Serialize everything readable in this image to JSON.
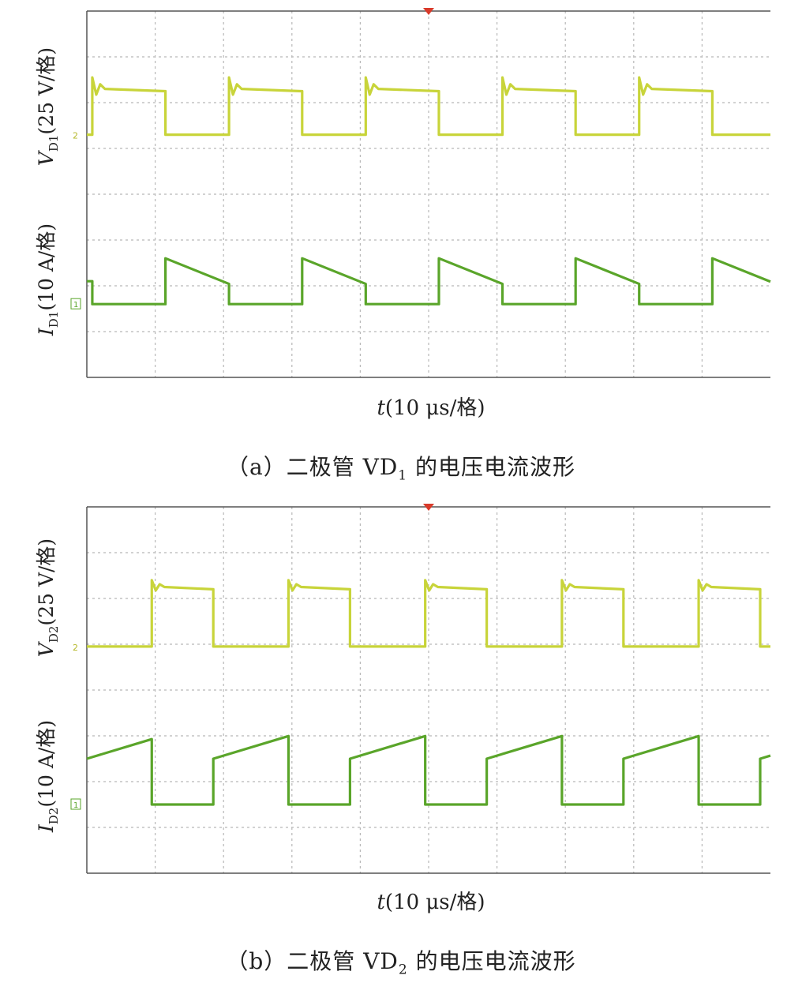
{
  "charts": [
    {
      "id": "a",
      "upper_label": {
        "var": "V",
        "sub": "D1",
        "rest": "(25 V/格)"
      },
      "lower_label": {
        "var": "I",
        "sub": "D1",
        "rest": "(10 A/格)"
      },
      "xlabel": {
        "var": "t",
        "rest": "(10 μs/格)"
      },
      "caption": {
        "prefix": "（a）二极管 VD",
        "sub": "1",
        "suffix": " 的电压电流波形"
      },
      "marker_upper": "2",
      "marker_lower": "1"
    },
    {
      "id": "b",
      "upper_label": {
        "var": "V",
        "sub": "D2",
        "rest": "(25 V/格)"
      },
      "lower_label": {
        "var": "I",
        "sub": "D2",
        "rest": "(10 A/格)"
      },
      "xlabel": {
        "var": "t",
        "rest": "(10 μs/格)"
      },
      "caption": {
        "prefix": "（b）二极管 VD",
        "sub": "2",
        "suffix": " 的电压电流波形"
      },
      "marker_upper": "2",
      "marker_lower": "1"
    }
  ],
  "chart_data": [
    {
      "type": "line",
      "title": "",
      "x_unit_per_div": "10 μs",
      "x_divisions": 10,
      "y_divisions": 8,
      "grid": true,
      "colors": {
        "voltage": "#c8d43a",
        "current": "#5aa52a",
        "grid": "#b8b8b8",
        "trigger": "#d93a2a"
      },
      "series": [
        {
          "name": "VD1",
          "unit_per_div": "25 V",
          "low_div": 5.3,
          "high_div": 6.3,
          "high_segments_div": [
            [
              0.08,
              1.15
            ],
            [
              2.08,
              3.15
            ],
            [
              4.08,
              5.15
            ],
            [
              6.08,
              7.15
            ],
            [
              8.08,
              9.15
            ]
          ],
          "overshoot_div": 0.25
        },
        {
          "name": "ID1",
          "unit_per_div": "10 A",
          "low_div": 1.6,
          "high_start_div": 2.6,
          "high_end_div": 2.0,
          "initial_value_div": 2.1,
          "high_segments_div": [
            [
              1.15,
              2.08
            ],
            [
              3.15,
              4.08
            ],
            [
              5.15,
              6.08
            ],
            [
              7.15,
              8.08
            ],
            [
              9.15,
              10.0
            ]
          ]
        }
      ]
    },
    {
      "type": "line",
      "title": "",
      "x_unit_per_div": "10 μs",
      "x_divisions": 10,
      "y_divisions": 8,
      "grid": true,
      "colors": {
        "voltage": "#c8d43a",
        "current": "#5aa52a",
        "grid": "#b8b8b8",
        "trigger": "#d93a2a"
      },
      "series": [
        {
          "name": "VD2",
          "unit_per_div": "25 V",
          "low_div": 4.95,
          "high_div": 6.25,
          "high_segments_div": [
            [
              0.95,
              1.85
            ],
            [
              2.95,
              3.85
            ],
            [
              4.95,
              5.85
            ],
            [
              6.95,
              7.85
            ],
            [
              8.95,
              9.85
            ]
          ],
          "overshoot_div": 0.15
        },
        {
          "name": "ID2",
          "unit_per_div": "10 A",
          "low_div": 1.5,
          "high_start_div": 2.5,
          "high_end_div": 2.95,
          "high_segments_div": [
            [
              0.0,
              0.95
            ],
            [
              1.85,
              2.95
            ],
            [
              3.85,
              4.95
            ],
            [
              5.85,
              6.95
            ],
            [
              7.85,
              8.95
            ],
            [
              9.85,
              10.0
            ]
          ]
        }
      ]
    }
  ]
}
